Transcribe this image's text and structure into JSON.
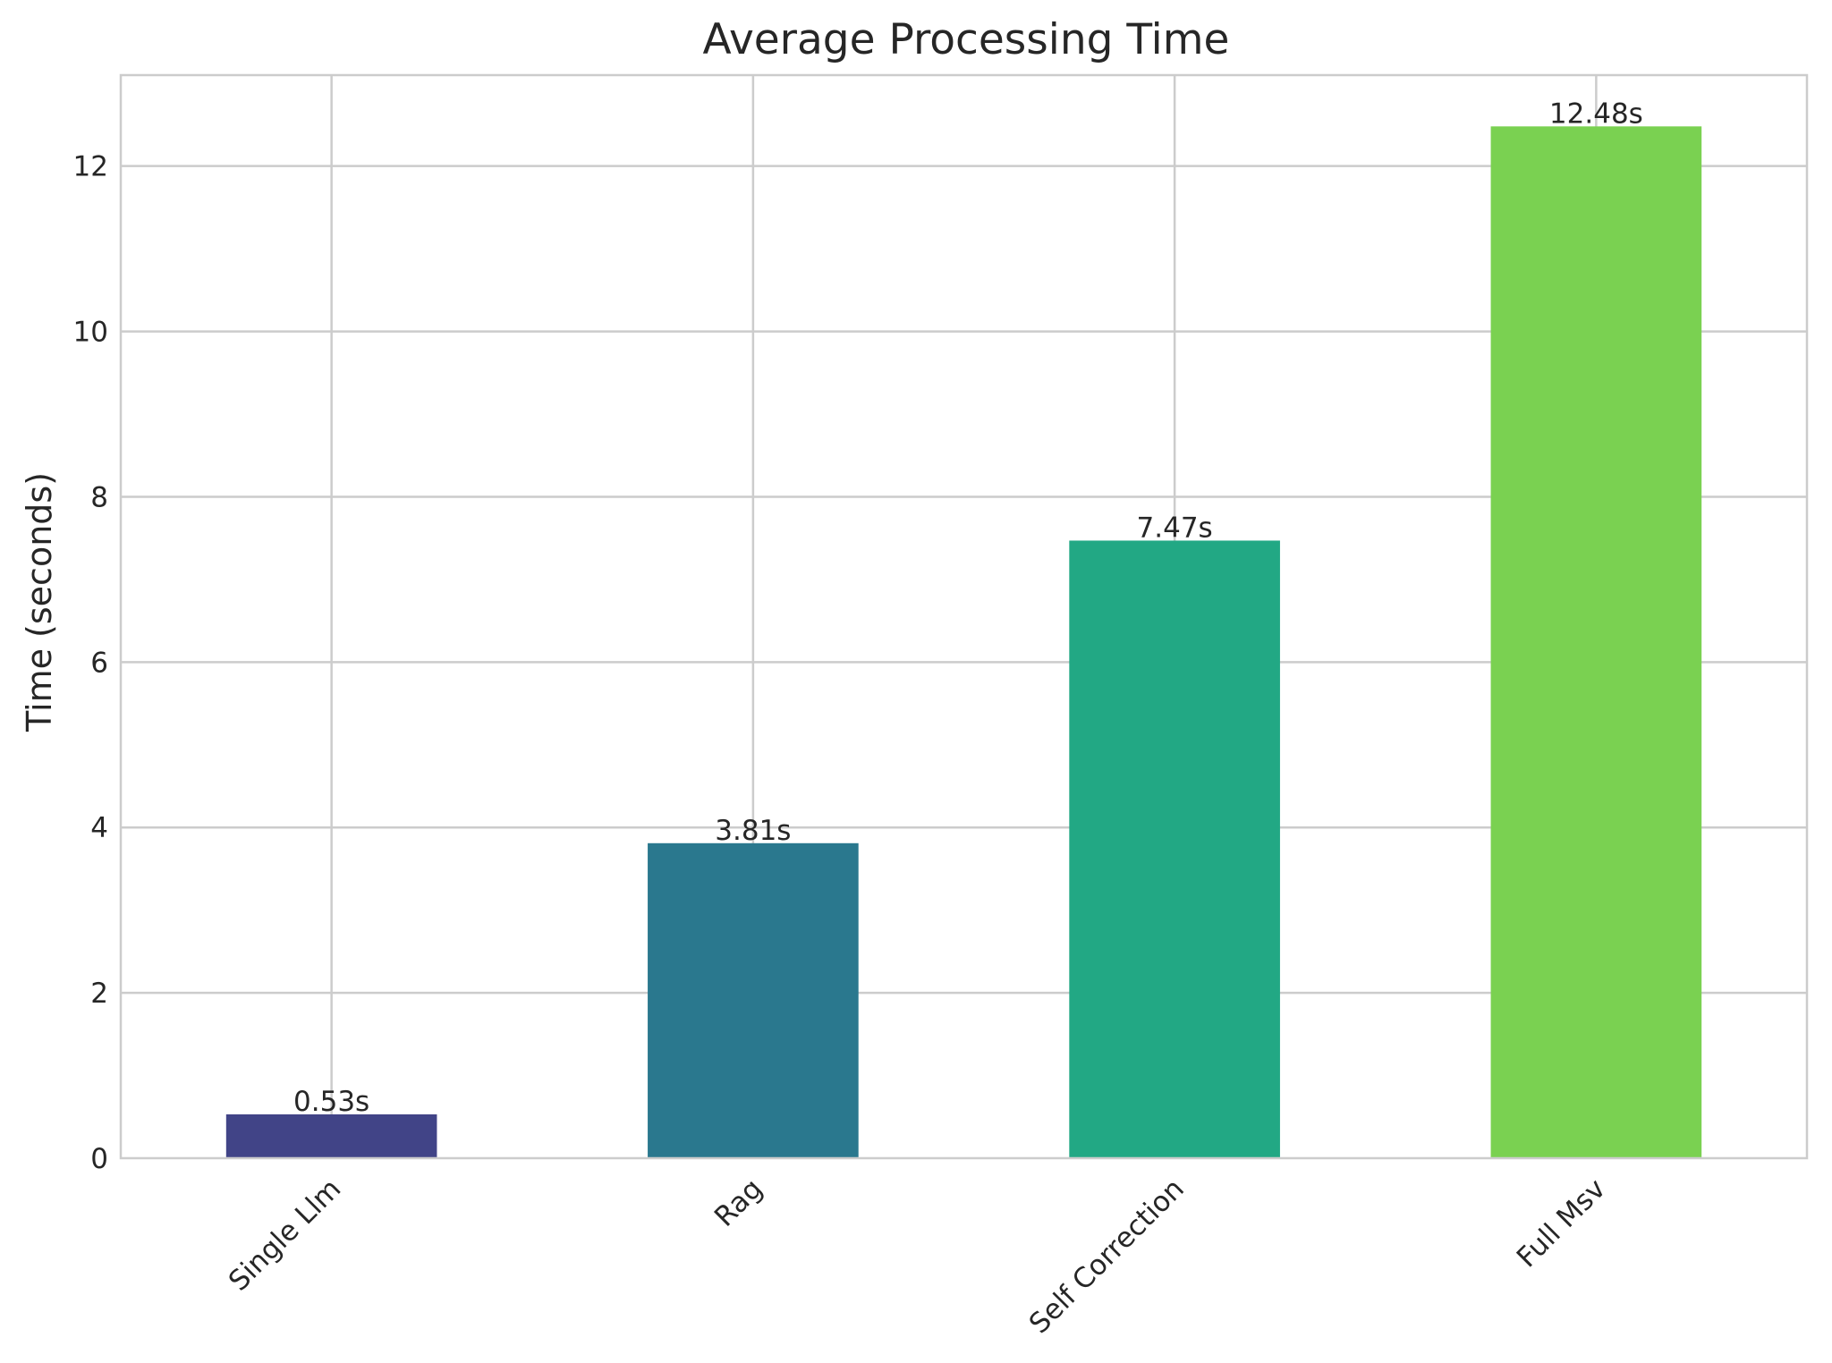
{
  "chart_data": {
    "type": "bar",
    "title": "Average Processing Time",
    "xlabel": "",
    "ylabel": "Time (seconds)",
    "categories": [
      "Single Llm",
      "Rag",
      "Self Correction",
      "Full Msv"
    ],
    "values": [
      0.53,
      3.81,
      7.47,
      12.48
    ],
    "value_labels": [
      "0.53s",
      "3.81s",
      "7.47s",
      "12.48s"
    ],
    "colors": [
      "#414487",
      "#2A788E",
      "#22A884",
      "#7AD151"
    ],
    "ylim": [
      0,
      13.1
    ],
    "yticks": [
      0,
      2,
      4,
      6,
      8,
      10,
      12
    ],
    "grid": true,
    "legend": "none"
  }
}
